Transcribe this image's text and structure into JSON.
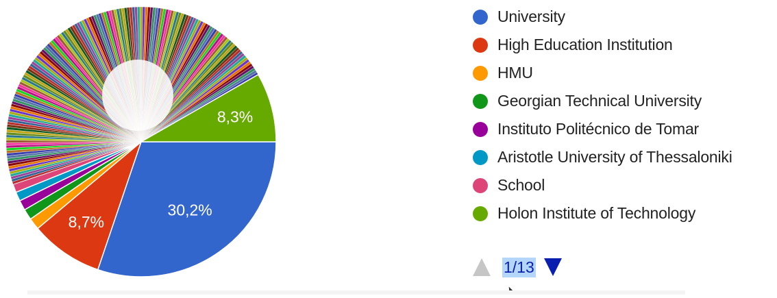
{
  "chart_data": {
    "type": "pie",
    "title": "",
    "slices": [
      {
        "label": "University",
        "value": 30.2,
        "color": "#3366cc",
        "data_label": "30,2%"
      },
      {
        "label": "High Education Institution",
        "value": 8.7,
        "color": "#dc3912",
        "data_label": "8,7%"
      },
      {
        "label": "HMU",
        "value": 1.4,
        "color": "#ff9900",
        "data_label": ""
      },
      {
        "label": "Georgian Technical University",
        "value": 1.3,
        "color": "#109618",
        "data_label": ""
      },
      {
        "label": "Instituto Politécnico de Tomar",
        "value": 1.2,
        "color": "#990099",
        "data_label": ""
      },
      {
        "label": "Aristotle University of Thessaloniki",
        "value": 1.1,
        "color": "#0099c6",
        "data_label": ""
      },
      {
        "label": "School",
        "value": 1.0,
        "color": "#dd4477",
        "data_label": ""
      },
      {
        "label": "Holon Institute of Technology",
        "value": 8.3,
        "color": "#66aa00",
        "data_label": "8,3%"
      }
    ],
    "other_slices_total": 46.8,
    "other_slice_count": 150,
    "other_palette": [
      "#b82e2e",
      "#316395",
      "#994499",
      "#22aa99",
      "#aaaa11",
      "#6633cc",
      "#e67300",
      "#8b0707",
      "#651067",
      "#329262",
      "#5574a6",
      "#3b3eac",
      "#b77322",
      "#16d620",
      "#b91383",
      "#f4359e",
      "#9c5935",
      "#a9c413",
      "#2a778d",
      "#668d1c",
      "#bea413",
      "#0c5922",
      "#743411"
    ],
    "legend_position": "right",
    "pager": {
      "label": "1/13",
      "page": 1,
      "pages": 13
    }
  },
  "icons": {
    "pager_up": "triangle-up-icon",
    "pager_down": "triangle-down-icon"
  }
}
